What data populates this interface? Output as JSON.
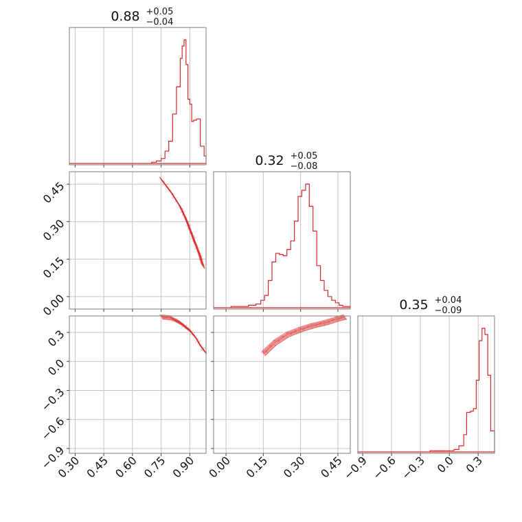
{
  "colors": {
    "series": "#d62728",
    "grid": "#c4c4c4",
    "frame": "#7a7a7a"
  },
  "chart_data": {
    "type": "corner",
    "parameters": [
      {
        "title": {
          "median": "0.88",
          "plus": "+0.05",
          "minus": "−0.04"
        }
      },
      {
        "title": {
          "median": "0.32",
          "plus": "+0.05",
          "minus": "−0.08"
        }
      },
      {
        "title": {
          "median": "0.35",
          "plus": "+0.04",
          "minus": "−0.09"
        }
      }
    ],
    "axes": [
      {
        "lim": [
          0.27,
          0.985
        ],
        "ticks": [
          0.3,
          0.45,
          0.6,
          0.75,
          0.9
        ],
        "tick_labels": [
          "0.30",
          "0.45",
          "0.60",
          "0.75",
          "0.90"
        ]
      },
      {
        "lim": [
          -0.05,
          0.5
        ],
        "ticks": [
          0.0,
          0.15,
          0.3,
          0.45
        ],
        "tick_labels": [
          "0.00",
          "0.15",
          "0.30",
          "0.45"
        ]
      },
      {
        "lim": [
          -0.95,
          0.47
        ],
        "ticks": [
          -0.9,
          -0.6,
          -0.3,
          0.0,
          0.3
        ],
        "tick_labels": [
          "−0.9",
          "−0.6",
          "−0.3",
          "0.0",
          "0.3"
        ]
      }
    ],
    "histograms": [
      {
        "bin_edges": [
          0.7,
          0.725,
          0.75,
          0.77,
          0.79,
          0.81,
          0.83,
          0.85,
          0.86,
          0.87,
          0.88,
          0.89,
          0.9,
          0.91,
          0.92,
          0.935,
          0.955,
          0.975,
          0.985
        ],
        "counts": [
          1,
          2,
          4,
          10,
          18,
          40,
          62,
          85,
          95,
          100,
          80,
          52,
          48,
          34,
          35,
          36,
          14,
          6
        ]
      },
      {
        "bin_edges": [
          0.02,
          0.05,
          0.09,
          0.12,
          0.14,
          0.155,
          0.17,
          0.185,
          0.2,
          0.215,
          0.23,
          0.245,
          0.26,
          0.275,
          0.29,
          0.305,
          0.32,
          0.335,
          0.35,
          0.365,
          0.38,
          0.395,
          0.41,
          0.425,
          0.44,
          0.455,
          0.47,
          0.5
        ],
        "counts": [
          1,
          1,
          2,
          3,
          6,
          10,
          22,
          37,
          44,
          43,
          42,
          47,
          54,
          70,
          90,
          95,
          100,
          82,
          62,
          34,
          22,
          14,
          9,
          6,
          4,
          2,
          1
        ]
      },
      {
        "bin_edges": [
          -0.2,
          -0.05,
          0.0,
          0.05,
          0.1,
          0.15,
          0.18,
          0.22,
          0.25,
          0.28,
          0.31,
          0.34,
          0.37,
          0.4,
          0.43,
          0.47
        ],
        "counts": [
          1,
          1,
          1,
          2,
          5,
          14,
          32,
          33,
          35,
          58,
          90,
          100,
          95,
          62,
          17
        ]
      }
    ],
    "contours": [
      {
        "x_param": 0,
        "y_param": 1,
        "points": [
          [
            0.75,
            0.47
          ],
          [
            0.8,
            0.42
          ],
          [
            0.85,
            0.36
          ],
          [
            0.88,
            0.31
          ],
          [
            0.91,
            0.25
          ],
          [
            0.93,
            0.21
          ],
          [
            0.95,
            0.17
          ],
          [
            0.97,
            0.12
          ]
        ]
      },
      {
        "x_param": 0,
        "y_param": 2,
        "points": [
          [
            0.75,
            0.46
          ],
          [
            0.8,
            0.45
          ],
          [
            0.85,
            0.4
          ],
          [
            0.9,
            0.32
          ],
          [
            0.93,
            0.25
          ],
          [
            0.96,
            0.15
          ],
          [
            0.98,
            0.1
          ]
        ]
      },
      {
        "x_param": 1,
        "y_param": 2,
        "points": [
          [
            0.15,
            0.08
          ],
          [
            0.2,
            0.2
          ],
          [
            0.25,
            0.28
          ],
          [
            0.3,
            0.33
          ],
          [
            0.35,
            0.37
          ],
          [
            0.4,
            0.4
          ],
          [
            0.45,
            0.44
          ],
          [
            0.48,
            0.46
          ]
        ]
      }
    ],
    "grid": true,
    "legend": "none"
  }
}
